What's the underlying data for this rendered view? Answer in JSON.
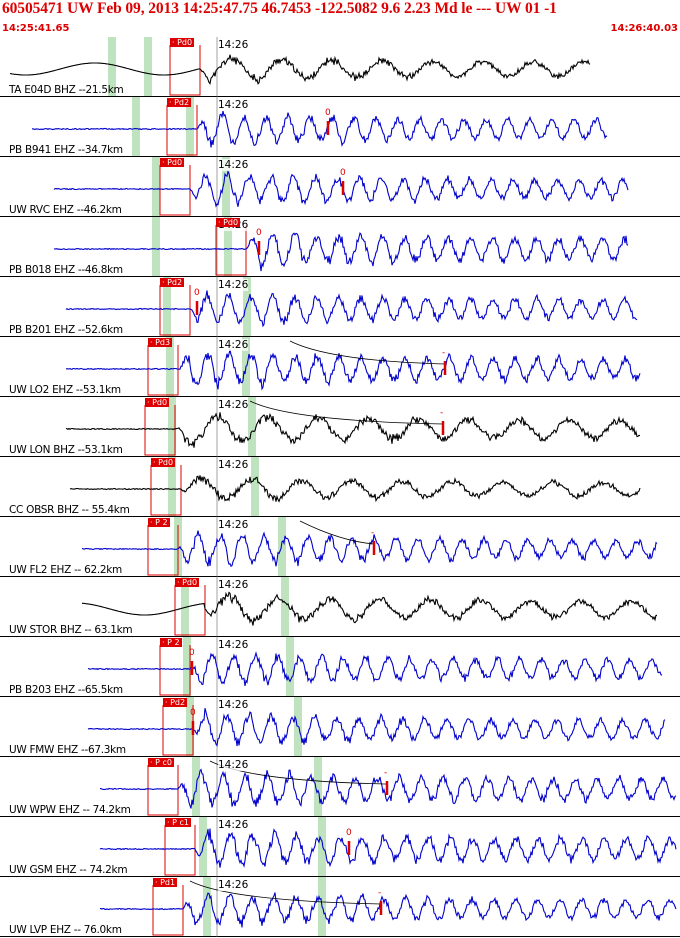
{
  "header": {
    "title": "60505471 UW Feb 09, 2013 14:25:47.75   46.7453 -122.5082  9.6 2.23 Md le --- UW 01   -1",
    "start_time": "14:25:41.65",
    "end_time": "14:26:40.03"
  },
  "minute_tick_label": "14:26",
  "colors": {
    "blue_trace": "#0000cc",
    "black_trace": "#000000",
    "pick_red": "#dd0000",
    "band_green": "#bfe3bf",
    "border": "#000000"
  },
  "traces": [
    {
      "station": "TA E04D BHZ --21.5km",
      "channel": "BHZ",
      "color": "black",
      "pick": "Pd0",
      "s_label": ""
    },
    {
      "station": "PB B941 EHZ --34.7km",
      "channel": "EHZ",
      "color": "blue",
      "pick": "Pd2",
      "s_label": "0"
    },
    {
      "station": "UW RVC EHZ --46.2km",
      "channel": "EHZ",
      "color": "blue",
      "pick": "Pd0",
      "s_label": "0"
    },
    {
      "station": "PB B018 EHZ --46.8km",
      "channel": "EHZ",
      "color": "blue",
      "pick": "Pd0",
      "s_label": "0"
    },
    {
      "station": "PB B201 EHZ --52.6km",
      "channel": "EHZ",
      "color": "blue",
      "pick": "Pd2",
      "s_label": "0"
    },
    {
      "station": "UW LO2 EHZ --53.1km",
      "channel": "EHZ",
      "color": "blue",
      "pick": "Pd3",
      "s_label": "-"
    },
    {
      "station": "UW LON BHZ --53.1km",
      "channel": "BHZ",
      "color": "black",
      "pick": "Pd0",
      "s_label": "-"
    },
    {
      "station": "CC OBSR BHZ -- 55.4km",
      "channel": "BHZ",
      "color": "black",
      "pick": "Pd0",
      "s_label": ""
    },
    {
      "station": "UW FL2 EHZ -- 62.2km",
      "channel": "EHZ",
      "color": "blue",
      "pick": "P 2",
      "s_label": "-"
    },
    {
      "station": "UW STOR BHZ -- 63.1km",
      "channel": "BHZ",
      "color": "black",
      "pick": "Pd0",
      "s_label": ""
    },
    {
      "station": "PB B203 EHZ --65.5km",
      "channel": "EHZ",
      "color": "blue",
      "pick": "P 2",
      "s_label": "0"
    },
    {
      "station": "UW FMW EHZ --67.3km",
      "channel": "EHZ",
      "color": "blue",
      "pick": "Pd2",
      "s_label": "0"
    },
    {
      "station": "UW WPW EHZ -- 74.2km",
      "channel": "EHZ",
      "color": "blue",
      "pick": "P c0",
      "s_label": "-"
    },
    {
      "station": "UW GSM EHZ -- 74.2km",
      "channel": "EHZ",
      "color": "blue",
      "pick": "P c1",
      "s_label": "0"
    },
    {
      "station": "UW LVP EHZ -- 76.0km",
      "channel": "EHZ",
      "color": "blue",
      "pick": "Pd1",
      "s_label": "-"
    }
  ]
}
